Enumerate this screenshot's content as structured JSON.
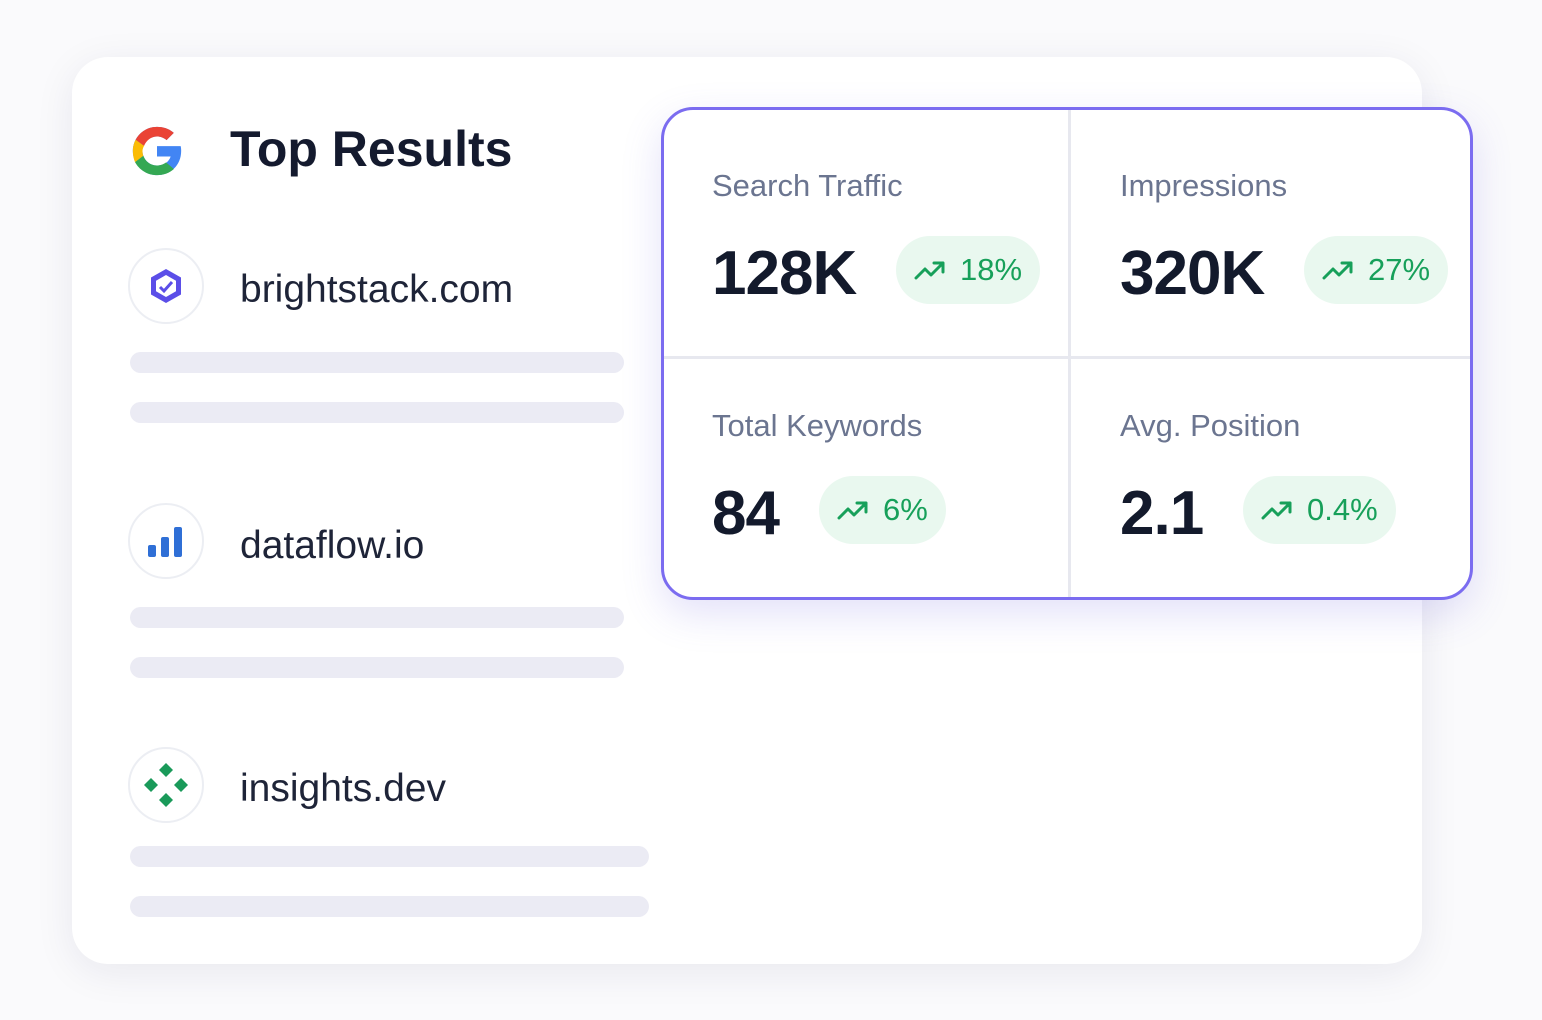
{
  "header": {
    "title": "Top Results"
  },
  "results": [
    {
      "domain": "brightstack.com"
    },
    {
      "domain": "dataflow.io"
    },
    {
      "domain": "insights.dev"
    }
  ],
  "metrics": [
    {
      "label": "Search Traffic",
      "value": "128K",
      "change": "18%"
    },
    {
      "label": "Impressions",
      "value": "320K",
      "change": "27%"
    },
    {
      "label": "Total Keywords",
      "value": "84",
      "change": "6%"
    },
    {
      "label": "Avg. Position",
      "value": "2.1",
      "change": "0.4%"
    }
  ]
}
